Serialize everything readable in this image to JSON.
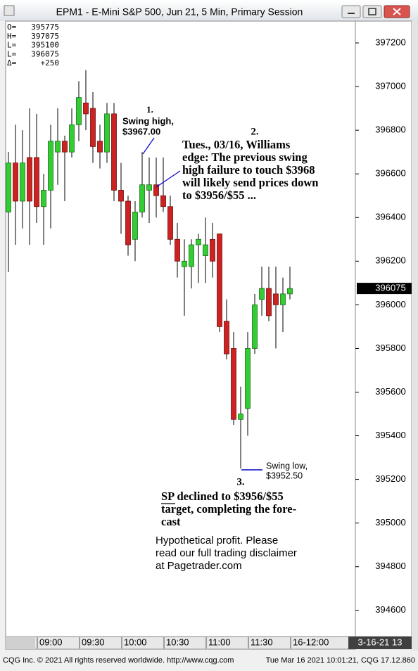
{
  "window_title": "EPM1 - E-Mini S&P 500, Jun 21, 5 Min, Primary Session",
  "chart_data": {
    "type": "candlestick",
    "categories": [
      null,
      null,
      null,
      null,
      "09:00",
      null,
      null,
      null,
      null,
      null,
      "09:30",
      null,
      null,
      null,
      null,
      null,
      "10:00",
      null,
      null,
      null,
      null,
      null,
      "10:30",
      null,
      null,
      null,
      null,
      null,
      "11:00",
      null,
      null,
      null,
      null,
      null,
      "11:30",
      null,
      null,
      null,
      null,
      null,
      "16-12:00"
    ],
    "open": [
      396425,
      396650,
      396475,
      396675,
      396675,
      396450,
      396525,
      396700,
      396750,
      396700,
      396825,
      396925,
      396900,
      396750,
      396700,
      396875,
      396525,
      396475,
      396300,
      396425,
      396525,
      396550,
      396500,
      396450,
      396300,
      396175,
      396175,
      396275,
      396225,
      396300,
      396325,
      395925,
      395800,
      395475,
      395525,
      395800,
      396025,
      396075,
      396050,
      396000,
      396050
    ],
    "high": [
      396700,
      396825,
      396800,
      396900,
      396875,
      396600,
      396825,
      396900,
      396775,
      396900,
      397025,
      397075,
      396975,
      396825,
      396925,
      396925,
      396650,
      396500,
      396475,
      396700,
      396675,
      396675,
      396675,
      396500,
      396375,
      396300,
      396300,
      396325,
      396400,
      396375,
      396325,
      396025,
      395875,
      395625,
      395875,
      396050,
      396175,
      396175,
      396175,
      396125,
      396175
    ],
    "low": [
      396150,
      396275,
      396350,
      396275,
      396375,
      396275,
      396350,
      396550,
      396475,
      396675,
      396750,
      396800,
      396650,
      396625,
      396650,
      396475,
      396325,
      396225,
      396200,
      396400,
      396375,
      396400,
      396425,
      396275,
      396125,
      395950,
      396075,
      396100,
      396100,
      396125,
      395875,
      395750,
      395450,
      395250,
      395400,
      395775,
      395950,
      395925,
      395800,
      395875,
      396025
    ],
    "close": [
      396650,
      396475,
      396650,
      396475,
      396450,
      396525,
      396750,
      396750,
      396700,
      396825,
      396950,
      396875,
      396725,
      396700,
      396875,
      396525,
      396475,
      396275,
      396425,
      396550,
      396550,
      396500,
      396450,
      396300,
      396200,
      396200,
      396275,
      396300,
      396275,
      396200,
      395900,
      395775,
      395475,
      395500,
      395800,
      396000,
      396075,
      395950,
      396000,
      396050,
      396075
    ],
    "up_color": "#33cc33",
    "down_color": "#cc2222",
    "ylim": [
      394480,
      397300
    ],
    "yticks": [
      394600,
      394800,
      395000,
      395200,
      395400,
      395600,
      395800,
      396000,
      396200,
      396400,
      396600,
      396800,
      397000,
      397200
    ],
    "last_price": 396075,
    "header": [
      {
        "label": "O=",
        "value": "395775"
      },
      {
        "label": "H=",
        "value": "397075"
      },
      {
        "label": "L=",
        "value": "395100"
      },
      {
        "label": "L=",
        "value": "396075"
      },
      {
        "label": "Δ=",
        "value": "+250"
      }
    ],
    "annotations": {
      "swing_high": {
        "number": "1.",
        "lines": [
          "Swing high,",
          "$3967.00"
        ]
      },
      "forecast": {
        "number": "2.",
        "lines": [
          "Tues., 03/16, Williams",
          "edge: The previous swing",
          "high failure to touch $3968",
          "will likely send prices down",
          "to $3956/$55 ..."
        ]
      },
      "swing_low": {
        "lines": [
          "Swing low,",
          "$3952.50"
        ]
      },
      "result": {
        "number": "3.",
        "lines": [
          "SP declined to $3956/$55",
          "target, completing the fore-",
          "cast"
        ]
      },
      "disclaimer": [
        "Hypothetical profit. Please",
        "read our full trading disclaimer",
        "at Pagetrader.com"
      ]
    },
    "date_box": "3-16-21  13"
  },
  "status_bar": {
    "left": "CQG Inc. © 2021 All rights reserved worldwide. http://www.cqg.com",
    "right": "Tue Mar 16 2021 10:01:21, CQG 17.12.860"
  }
}
